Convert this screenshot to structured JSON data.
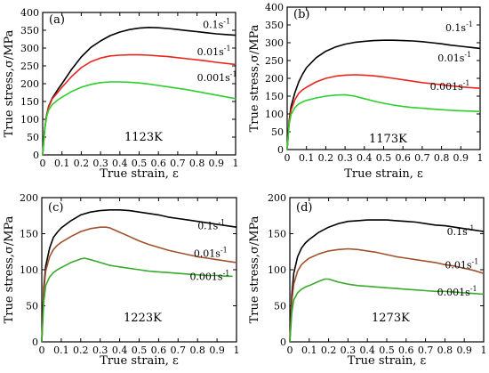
{
  "chart_data": [
    {
      "type": "line",
      "panel_label": "(a)",
      "temperature": "1123K",
      "xlabel": "True strain, ε",
      "ylabel": "True stress,σ/MPa",
      "xlim": [
        0,
        1
      ],
      "ylim": [
        0,
        400
      ],
      "xticks": [
        "0",
        "0.1",
        "0.2",
        "0.3",
        "0.4",
        "0.5",
        "0.6",
        "0.7",
        "0.8",
        "0.9",
        "1"
      ],
      "yticks": [
        "0",
        "50",
        "100",
        "150",
        "200",
        "250",
        "300",
        "350",
        "400"
      ],
      "series": [
        {
          "name": "0.1s-1",
          "label_base": "0.1s",
          "label_exp": "-1",
          "color": "#000000",
          "x": [
            0,
            0.01,
            0.02,
            0.03,
            0.05,
            0.08,
            0.1,
            0.15,
            0.2,
            0.25,
            0.3,
            0.35,
            0.4,
            0.45,
            0.5,
            0.55,
            0.6,
            0.65,
            0.7,
            0.75,
            0.8,
            0.85,
            0.9,
            0.95,
            1.0
          ],
          "y": [
            0,
            70,
            110,
            135,
            160,
            185,
            200,
            240,
            275,
            302,
            320,
            335,
            345,
            352,
            356,
            358,
            357,
            355,
            352,
            349,
            346,
            343,
            340,
            338,
            336
          ]
        },
        {
          "name": "0.01s-1",
          "label_base": "0.01s",
          "label_exp": "-1",
          "color": "#e8261c",
          "x": [
            0,
            0.01,
            0.02,
            0.03,
            0.05,
            0.08,
            0.1,
            0.15,
            0.2,
            0.25,
            0.3,
            0.35,
            0.4,
            0.45,
            0.5,
            0.55,
            0.6,
            0.65,
            0.7,
            0.75,
            0.8,
            0.85,
            0.9,
            0.95,
            1.0
          ],
          "y": [
            0,
            70,
            110,
            133,
            158,
            177,
            190,
            220,
            245,
            262,
            272,
            278,
            280,
            281,
            281,
            280,
            278,
            276,
            273,
            270,
            267,
            264,
            260,
            257,
            254
          ]
        },
        {
          "name": "0.001s-1",
          "label_base": "0.001s",
          "label_exp": "-1",
          "color": "#2ccf2c",
          "x": [
            0,
            0.01,
            0.02,
            0.03,
            0.05,
            0.08,
            0.1,
            0.15,
            0.2,
            0.25,
            0.3,
            0.35,
            0.4,
            0.45,
            0.5,
            0.55,
            0.6,
            0.65,
            0.7,
            0.75,
            0.8,
            0.85,
            0.9,
            0.95,
            1.0
          ],
          "y": [
            0,
            70,
            105,
            125,
            142,
            155,
            162,
            178,
            190,
            198,
            203,
            205,
            205,
            204,
            202,
            199,
            195,
            191,
            187,
            183,
            178,
            173,
            168,
            163,
            158
          ]
        }
      ],
      "label_positions": [
        [
          0.83,
          0.89
        ],
        [
          0.8,
          0.7
        ],
        [
          0.8,
          0.52
        ]
      ]
    },
    {
      "type": "line",
      "panel_label": "(b)",
      "temperature": "1173K",
      "xlabel": "True strain, ε",
      "ylabel": "True stress,σ/MPa",
      "xlim": [
        0,
        1
      ],
      "ylim": [
        0,
        400
      ],
      "xticks": [
        "0",
        "0.1",
        "0.2",
        "0.3",
        "0.4",
        "0.5",
        "0.6",
        "0.7",
        "0.8",
        "0.9",
        "1"
      ],
      "yticks": [
        "0",
        "50",
        "100",
        "150",
        "200",
        "250",
        "300",
        "350",
        "400"
      ],
      "series": [
        {
          "name": "0.1s-1",
          "label_base": "0.1s",
          "label_exp": "-1",
          "color": "#000000",
          "x": [
            0,
            0.01,
            0.02,
            0.04,
            0.06,
            0.08,
            0.1,
            0.15,
            0.2,
            0.25,
            0.3,
            0.35,
            0.4,
            0.45,
            0.5,
            0.55,
            0.6,
            0.65,
            0.7,
            0.75,
            0.8,
            0.85,
            0.9,
            0.95,
            1.0
          ],
          "y": [
            0,
            80,
            120,
            160,
            190,
            212,
            230,
            258,
            276,
            288,
            296,
            301,
            304,
            306,
            307,
            307,
            306,
            305,
            303,
            300,
            297,
            293,
            290,
            287,
            284
          ]
        },
        {
          "name": "0.01s-1",
          "label_base": "0.01s",
          "label_exp": "-1",
          "color": "#e8261c",
          "x": [
            0,
            0.01,
            0.02,
            0.04,
            0.06,
            0.08,
            0.1,
            0.15,
            0.2,
            0.25,
            0.3,
            0.35,
            0.4,
            0.45,
            0.5,
            0.55,
            0.6,
            0.65,
            0.7,
            0.75,
            0.8,
            0.85,
            0.9,
            0.95,
            1.0
          ],
          "y": [
            0,
            75,
            110,
            140,
            158,
            168,
            175,
            190,
            200,
            206,
            209,
            210,
            209,
            207,
            204,
            200,
            196,
            192,
            188,
            185,
            182,
            179,
            176,
            174,
            172
          ]
        },
        {
          "name": "0.001s-1",
          "label_base": "0.001s",
          "label_exp": "-1",
          "color": "#2ccf2c",
          "x": [
            0,
            0.01,
            0.02,
            0.04,
            0.06,
            0.08,
            0.1,
            0.15,
            0.2,
            0.25,
            0.3,
            0.35,
            0.4,
            0.45,
            0.5,
            0.55,
            0.6,
            0.65,
            0.7,
            0.75,
            0.8,
            0.85,
            0.9,
            0.95,
            1.0
          ],
          "y": [
            0,
            70,
            98,
            118,
            128,
            134,
            138,
            145,
            150,
            153,
            154,
            150,
            143,
            136,
            130,
            125,
            121,
            118,
            116,
            114,
            112,
            110,
            109,
            108,
            107
          ]
        }
      ],
      "label_positions": [
        [
          0.82,
          0.83
        ],
        [
          0.78,
          0.62
        ],
        [
          0.74,
          0.42
        ]
      ]
    },
    {
      "type": "line",
      "panel_label": "(c)",
      "temperature": "1223K",
      "xlabel": "True strain, ε",
      "ylabel": "True stress,σ/MPa",
      "xlim": [
        0,
        1
      ],
      "ylim": [
        0,
        200
      ],
      "xticks": [
        "0",
        "0.1",
        "0.2",
        "0.3",
        "0.4",
        "0.5",
        "0.6",
        "0.7",
        "0.8",
        "0.9",
        "1"
      ],
      "yticks": [
        "0",
        "50",
        "100",
        "150",
        "200"
      ],
      "series": [
        {
          "name": "0.1s-1",
          "label_base": "0.1s",
          "label_exp": "-1",
          "color": "#000000",
          "x": [
            0,
            0.01,
            0.02,
            0.04,
            0.06,
            0.08,
            0.1,
            0.15,
            0.2,
            0.25,
            0.3,
            0.35,
            0.4,
            0.45,
            0.5,
            0.55,
            0.6,
            0.65,
            0.7,
            0.75,
            0.8,
            0.85,
            0.9,
            0.95,
            1.0
          ],
          "y": [
            0,
            75,
            105,
            130,
            145,
            152,
            158,
            168,
            176,
            180,
            182,
            183,
            183,
            182,
            180,
            178,
            176,
            173,
            171,
            169,
            167,
            165,
            163,
            161,
            159
          ]
        },
        {
          "name": "0.01s-1",
          "label_base": "0.01s",
          "label_exp": "-1",
          "color": "#a0522d",
          "x": [
            0,
            0.01,
            0.02,
            0.04,
            0.06,
            0.08,
            0.1,
            0.15,
            0.2,
            0.25,
            0.3,
            0.33,
            0.35,
            0.4,
            0.45,
            0.5,
            0.55,
            0.6,
            0.65,
            0.7,
            0.75,
            0.8,
            0.85,
            0.9,
            0.95,
            1.0
          ],
          "y": [
            0,
            70,
            98,
            118,
            128,
            134,
            138,
            146,
            153,
            157,
            159,
            159,
            158,
            152,
            146,
            140,
            135,
            131,
            127,
            124,
            121,
            118,
            116,
            114,
            112,
            110
          ]
        },
        {
          "name": "0.001s-1",
          "label_base": "0.001s",
          "label_exp": "-1",
          "color": "#3aaa2e",
          "x": [
            0,
            0.01,
            0.02,
            0.04,
            0.06,
            0.08,
            0.1,
            0.15,
            0.2,
            0.22,
            0.25,
            0.3,
            0.35,
            0.4,
            0.45,
            0.5,
            0.55,
            0.6,
            0.65,
            0.7,
            0.75,
            0.8,
            0.85,
            0.9,
            0.95,
            0.98
          ],
          "y": [
            0,
            55,
            78,
            90,
            96,
            100,
            103,
            110,
            115,
            116,
            114,
            110,
            106,
            104,
            102,
            100,
            98,
            97,
            96,
            95,
            94,
            93,
            92,
            92,
            91,
            91
          ]
        }
      ],
      "label_positions": [
        [
          0.8,
          0.78
        ],
        [
          0.78,
          0.59
        ],
        [
          0.76,
          0.43
        ]
      ]
    },
    {
      "type": "line",
      "panel_label": "(d)",
      "temperature": "1273K",
      "xlabel": "True strain, ε",
      "ylabel": "True stress,σ/MPa",
      "xlim": [
        0,
        1
      ],
      "ylim": [
        0,
        200
      ],
      "xticks": [
        "0",
        "0.1",
        "0.2",
        "0.3",
        "0.4",
        "0.5",
        "0.6",
        "0.7",
        "0.8",
        "0.9",
        "1"
      ],
      "yticks": [
        "0",
        "50",
        "100",
        "150",
        "200"
      ],
      "series": [
        {
          "name": "0.1s-1",
          "label_base": "0.1s",
          "label_exp": "-1",
          "color": "#000000",
          "x": [
            0,
            0.01,
            0.02,
            0.04,
            0.06,
            0.08,
            0.1,
            0.15,
            0.2,
            0.25,
            0.3,
            0.35,
            0.4,
            0.45,
            0.5,
            0.55,
            0.6,
            0.65,
            0.7,
            0.75,
            0.8,
            0.85,
            0.9,
            0.95,
            1.0
          ],
          "y": [
            0,
            65,
            95,
            118,
            130,
            137,
            142,
            152,
            159,
            164,
            167,
            168,
            169,
            169,
            169,
            168,
            167,
            166,
            164,
            162,
            161,
            159,
            157,
            155,
            153
          ]
        },
        {
          "name": "0.01s-1",
          "label_base": "0.01s",
          "label_exp": "-1",
          "color": "#a0522d",
          "x": [
            0,
            0.01,
            0.02,
            0.04,
            0.06,
            0.08,
            0.1,
            0.15,
            0.2,
            0.25,
            0.3,
            0.35,
            0.4,
            0.45,
            0.5,
            0.55,
            0.6,
            0.65,
            0.7,
            0.75,
            0.8,
            0.85,
            0.9,
            0.95,
            1.0
          ],
          "y": [
            0,
            55,
            80,
            98,
            107,
            112,
            116,
            122,
            126,
            128,
            129,
            128,
            126,
            124,
            121,
            118,
            116,
            114,
            112,
            110,
            107,
            105,
            102,
            99,
            95
          ]
        },
        {
          "name": "0.001s-1",
          "label_base": "0.001s",
          "label_exp": "-1",
          "color": "#3aaa2e",
          "x": [
            0,
            0.01,
            0.02,
            0.04,
            0.06,
            0.08,
            0.1,
            0.15,
            0.18,
            0.2,
            0.25,
            0.3,
            0.35,
            0.4,
            0.45,
            0.5,
            0.55,
            0.6,
            0.65,
            0.7,
            0.75,
            0.8,
            0.85,
            0.9,
            0.95,
            1.0
          ],
          "y": [
            0,
            40,
            58,
            68,
            73,
            76,
            78,
            84,
            87,
            87,
            83,
            80,
            78,
            77,
            76,
            75,
            74,
            73,
            72,
            71,
            70,
            70,
            69,
            68,
            67,
            66
          ]
        }
      ],
      "label_positions": [
        [
          0.81,
          0.74
        ],
        [
          0.8,
          0.51
        ],
        [
          0.76,
          0.32
        ]
      ]
    }
  ]
}
